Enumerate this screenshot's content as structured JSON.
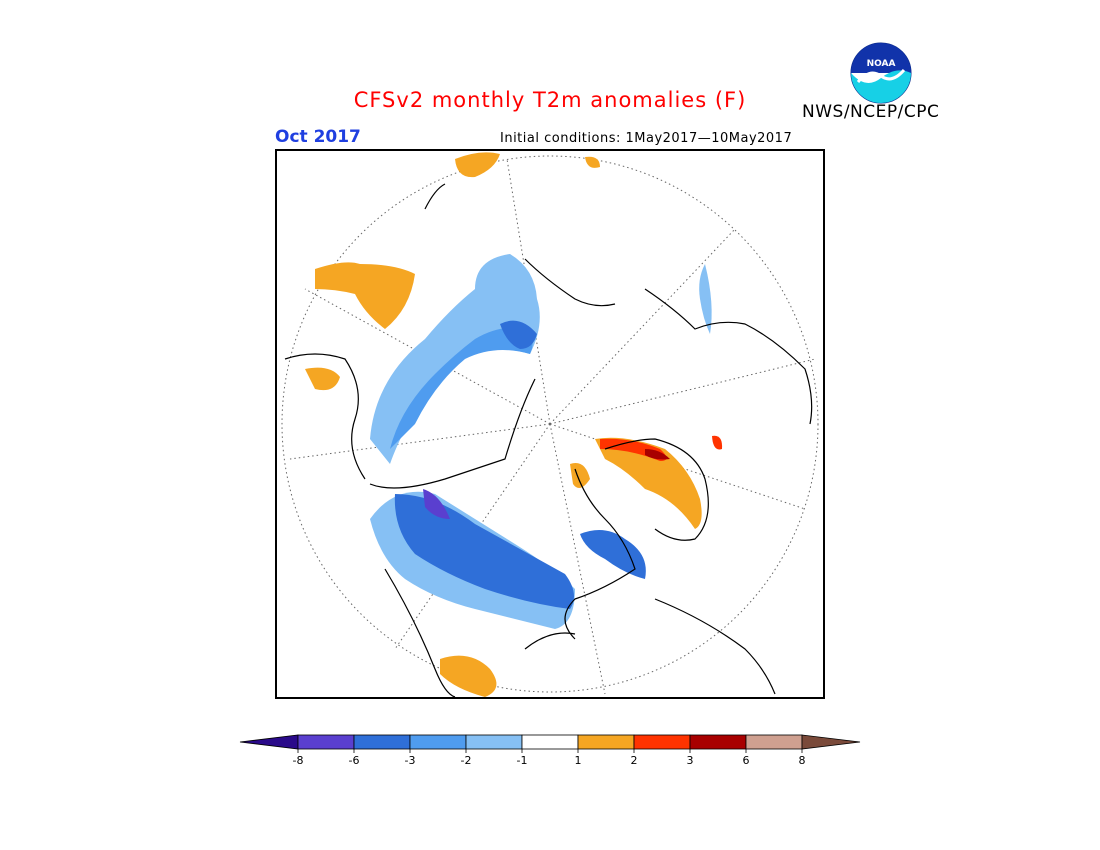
{
  "title": "CFSv2 monthly T2m anomalies (F)",
  "valid_month": "Oct 2017",
  "initial_conditions": "Initial conditions: 1May2017—10May2017",
  "agency": "NWS/NCEP/CPC",
  "logo": {
    "text": "NOAA",
    "icon": "noaa-logo-icon"
  },
  "colorbar": {
    "colors": [
      "#2a0a8a",
      "#5a3fcf",
      "#2f6fd8",
      "#4f9cef",
      "#86c0f4",
      "#ffffff",
      "#f5a623",
      "#ff3300",
      "#a80000",
      "#cfa090",
      "#7a4a3a"
    ],
    "ticks": [
      "-8",
      "-6",
      "-3",
      "-2",
      "-1",
      "1",
      "2",
      "3",
      "6",
      "8"
    ]
  },
  "colors": {
    "title": "#ff0000",
    "month": "#1f3fe0",
    "warm": "#f5a623",
    "cool_light": "#86c0f4",
    "cool_mid": "#4f9cef",
    "cool_dark": "#2f6fd8"
  }
}
